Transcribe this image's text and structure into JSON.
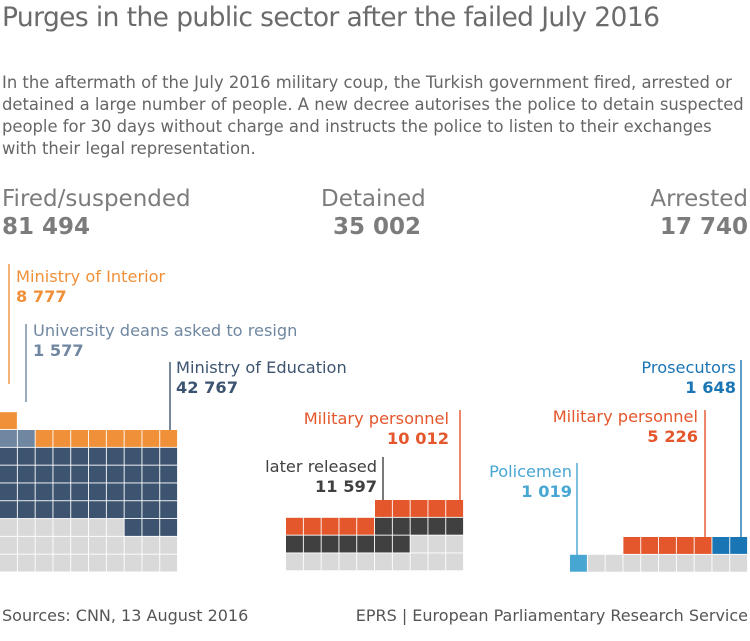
{
  "title": "Purges in the public sector after the failed July 2016",
  "intro": "In the aftermath of the July 2016 military coup, the Turkish government fired, arrested or detained a large number of people. A new  decree autorises the police to detain suspected people for 30 days without charge and instructs the police to listen to their exchanges with their legal representation.",
  "stats": {
    "fired": {
      "label": "Fired/suspended",
      "value": "81 494"
    },
    "detained": {
      "label": "Detained",
      "value": "35 002"
    },
    "arrested": {
      "label": "Arrested",
      "value": "17 740"
    }
  },
  "chart_data": {
    "type": "waffle",
    "groups": [
      {
        "name": "Fired/suspended",
        "total": 81494,
        "segments": [
          {
            "label": "Ministry of Interior",
            "value": 8777,
            "display": "8 777",
            "color": "#f0913a"
          },
          {
            "label": "University deans asked to resign",
            "value": 1577,
            "display": "1 577",
            "color": "#6f87a1"
          },
          {
            "label": "Ministry of Education",
            "value": 42767,
            "display": "42 767",
            "color": "#3d5470"
          }
        ]
      },
      {
        "name": "Detained",
        "total": 35002,
        "segments": [
          {
            "label": "Military personnel",
            "value": 10012,
            "display": "10 012",
            "color": "#e4562b"
          },
          {
            "label": "later released",
            "value": 11597,
            "display": "11 597",
            "color": "#404040"
          }
        ]
      },
      {
        "name": "Arrested",
        "total": 17740,
        "segments": [
          {
            "label": "Policemen",
            "value": 1019,
            "display": "1 019",
            "color": "#48a6d3"
          },
          {
            "label": "Military personnel",
            "value": 5226,
            "display": "5 226",
            "color": "#e4562b"
          },
          {
            "label": "Prosecutors",
            "value": 1648,
            "display": "1 648",
            "color": "#1a75b4"
          }
        ]
      }
    ],
    "empty_color": "#d9d9d9",
    "grid": false,
    "legend": "none"
  },
  "footer": {
    "sources": "Sources: CNN, 13 August 2016",
    "credit": "EPRS | European Parliamentary Research Service"
  }
}
